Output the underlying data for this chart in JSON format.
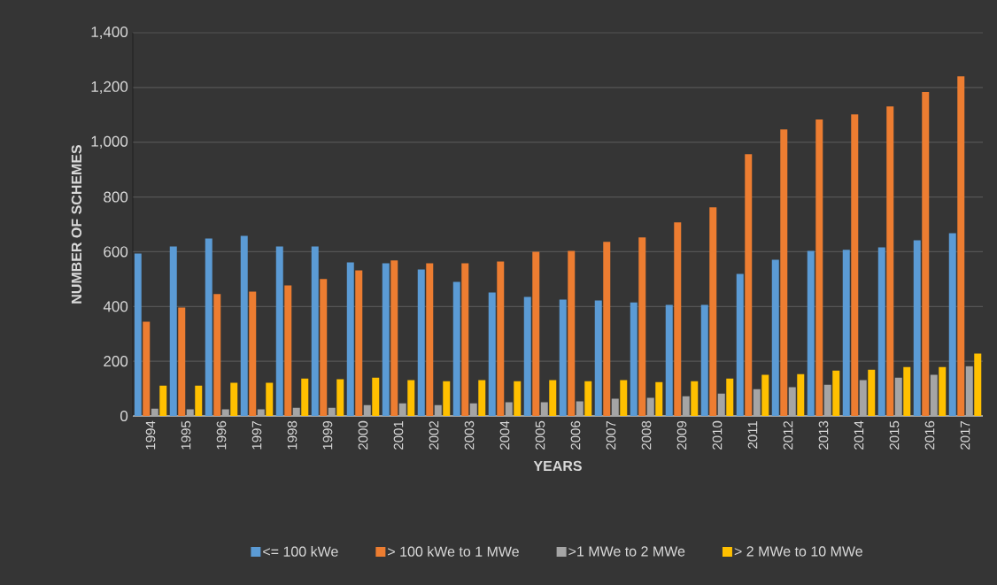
{
  "chart_data": {
    "type": "bar",
    "xlabel": "YEARS",
    "ylabel": "NUMBER OF SCHEMES",
    "categories": [
      "1994",
      "1995",
      "1996",
      "1997",
      "1998",
      "1999",
      "2000",
      "2001",
      "2002",
      "2003",
      "2004",
      "2005",
      "2006",
      "2007",
      "2008",
      "2009",
      "2010",
      "2011",
      "2012",
      "2013",
      "2014",
      "2015",
      "2016",
      "2017"
    ],
    "series": [
      {
        "name": "<= 100 kWe",
        "color": "#5b9bd5",
        "values": [
          593,
          619,
          648,
          658,
          619,
          619,
          561,
          558,
          535,
          490,
          451,
          435,
          425,
          422,
          415,
          406,
          406,
          519,
          571,
          603,
          607,
          616,
          642,
          668
        ]
      },
      {
        "name": "> 100 kWe  to  1 MWe",
        "color": "#ed7d31",
        "values": [
          344,
          396,
          445,
          454,
          477,
          500,
          532,
          568,
          558,
          558,
          564,
          600,
          603,
          636,
          652,
          707,
          762,
          956,
          1047,
          1083,
          1102,
          1131,
          1183,
          1241
        ]
      },
      {
        "name": ">1 MWe to 2 MWe",
        "color": "#a5a5a5",
        "values": [
          27,
          24,
          24,
          24,
          30,
          30,
          40,
          46,
          40,
          46,
          50,
          50,
          53,
          63,
          66,
          72,
          82,
          98,
          105,
          114,
          131,
          140,
          150,
          182
        ]
      },
      {
        "name": "> 2 MWe to 10 MWe",
        "color": "#ffc000",
        "values": [
          111,
          111,
          121,
          121,
          137,
          134,
          140,
          131,
          127,
          131,
          127,
          131,
          127,
          131,
          124,
          127,
          137,
          150,
          153,
          166,
          169,
          179,
          179,
          228
        ]
      }
    ],
    "ylim": [
      0,
      1400
    ],
    "yticks": [
      0,
      200,
      400,
      600,
      800,
      {
        "value": 1000,
        "label": "1,000"
      },
      {
        "value": 1200,
        "label": "1,200"
      },
      {
        "value": 1400,
        "label": "1,400"
      }
    ],
    "grid": "y",
    "legend": "bottom"
  }
}
